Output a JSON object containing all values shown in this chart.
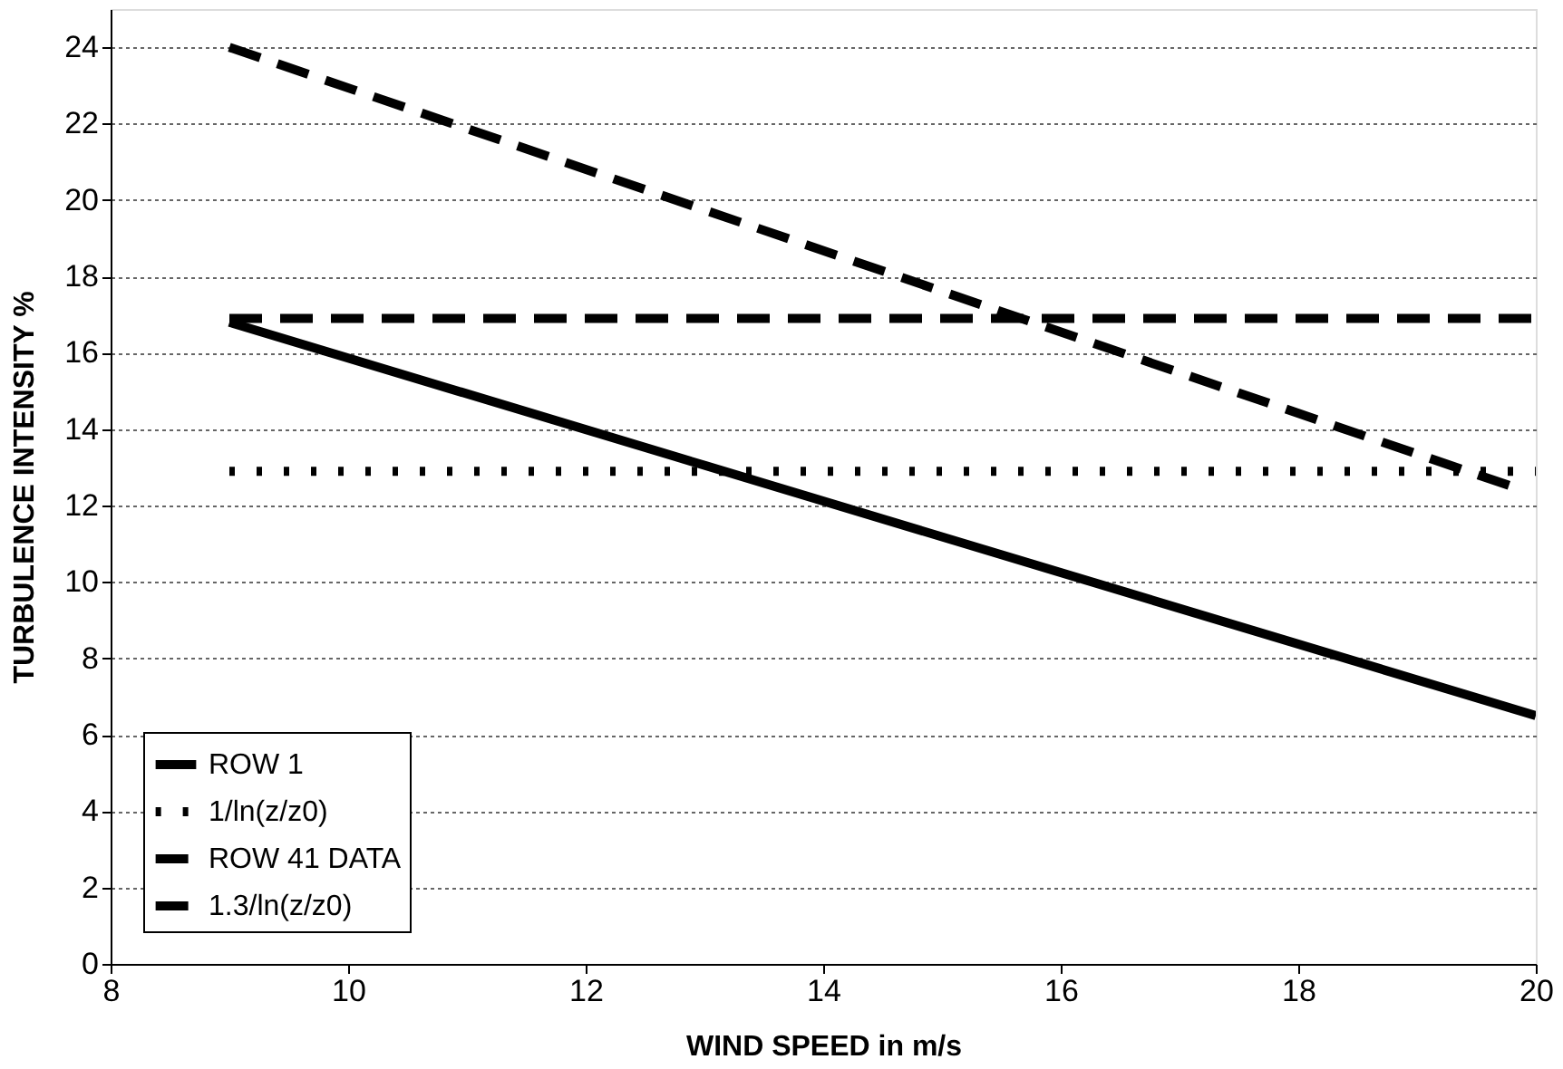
{
  "chart_data": {
    "type": "line",
    "xlabel": "WIND SPEED in m/s",
    "ylabel": "TURBULENCE INTENSITY %",
    "xlim": [
      8,
      20
    ],
    "xticks": [
      8,
      10,
      12,
      14,
      16,
      18,
      20
    ],
    "ylim": [
      0,
      25
    ],
    "yticks": [
      0,
      2,
      4,
      6,
      8,
      10,
      12,
      14,
      16,
      18,
      20,
      22,
      24
    ],
    "grid": "y",
    "legend": "bottom left",
    "marker": "none",
    "series": [
      {
        "name": "ROW 1",
        "color": "#000000",
        "line_style": "solid",
        "x": [
          9,
          20
        ],
        "values": [
          16.8,
          6.5
        ]
      },
      {
        "name": "1/ln(z/z0)",
        "color": "#000000",
        "line_style": "dotted",
        "x": [
          9,
          20
        ],
        "values": [
          12.9,
          12.9
        ]
      },
      {
        "name": "ROW 41 DATA",
        "color": "#000000",
        "line_style": "dashed",
        "x": [
          9,
          19.8
        ],
        "values": [
          24,
          12.5
        ]
      },
      {
        "name": "1.3/ln(z/z0)",
        "color": "#000000",
        "line_style": "dashed",
        "x": [
          9,
          20
        ],
        "values": [
          16.9,
          16.9
        ]
      }
    ]
  }
}
